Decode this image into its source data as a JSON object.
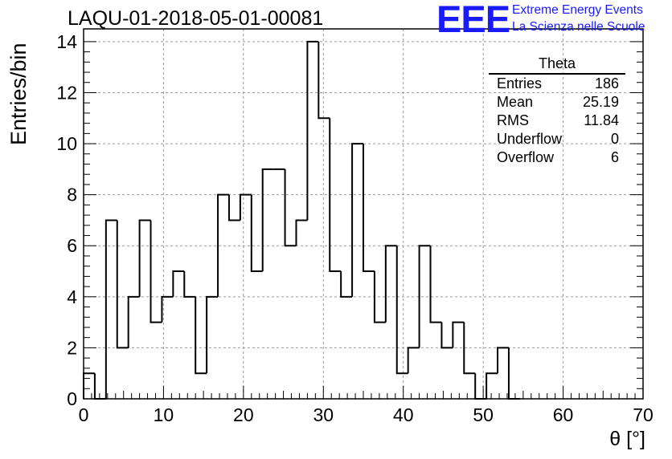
{
  "header": {
    "title": "LAQU-01-2018-05-01-00081"
  },
  "logo": {
    "mark": "EEE",
    "line1": "Extreme Energy Events",
    "line2": "La Scienza nelle Scuole",
    "color": "#1a1aff"
  },
  "stats_box": {
    "name": "Theta",
    "rows": [
      {
        "key": "Entries",
        "value": "186"
      },
      {
        "key": "Mean",
        "value": "25.19"
      },
      {
        "key": "RMS",
        "value": "11.84"
      },
      {
        "key": "Underflow",
        "value": "0"
      },
      {
        "key": "Overflow",
        "value": "6"
      }
    ]
  },
  "chart_data": {
    "type": "bar",
    "style": "step-histogram",
    "title": "LAQU-01-2018-05-01-00081",
    "xlabel": "θ [°]",
    "ylabel": "Entries/bin",
    "xlim": [
      0,
      70
    ],
    "ylim": [
      0,
      14.5
    ],
    "x_ticks": [
      0,
      10,
      20,
      30,
      40,
      50,
      60,
      70
    ],
    "y_ticks": [
      0,
      2,
      4,
      6,
      8,
      10,
      12,
      14
    ],
    "grid": true,
    "bin_width": 1.4,
    "bin_start": 0,
    "values": [
      1,
      0,
      7,
      2,
      4,
      7,
      3,
      4,
      5,
      4,
      1,
      4,
      8,
      7,
      8,
      5,
      9,
      9,
      6,
      7,
      14,
      11,
      5,
      4,
      10,
      5,
      3,
      6,
      1,
      2,
      6,
      3,
      2,
      3,
      1,
      0,
      1,
      2,
      0,
      0,
      0,
      0,
      0,
      0,
      0,
      0,
      0,
      0,
      0,
      0
    ],
    "line_color": "#000000",
    "grid_color": "#999999"
  }
}
